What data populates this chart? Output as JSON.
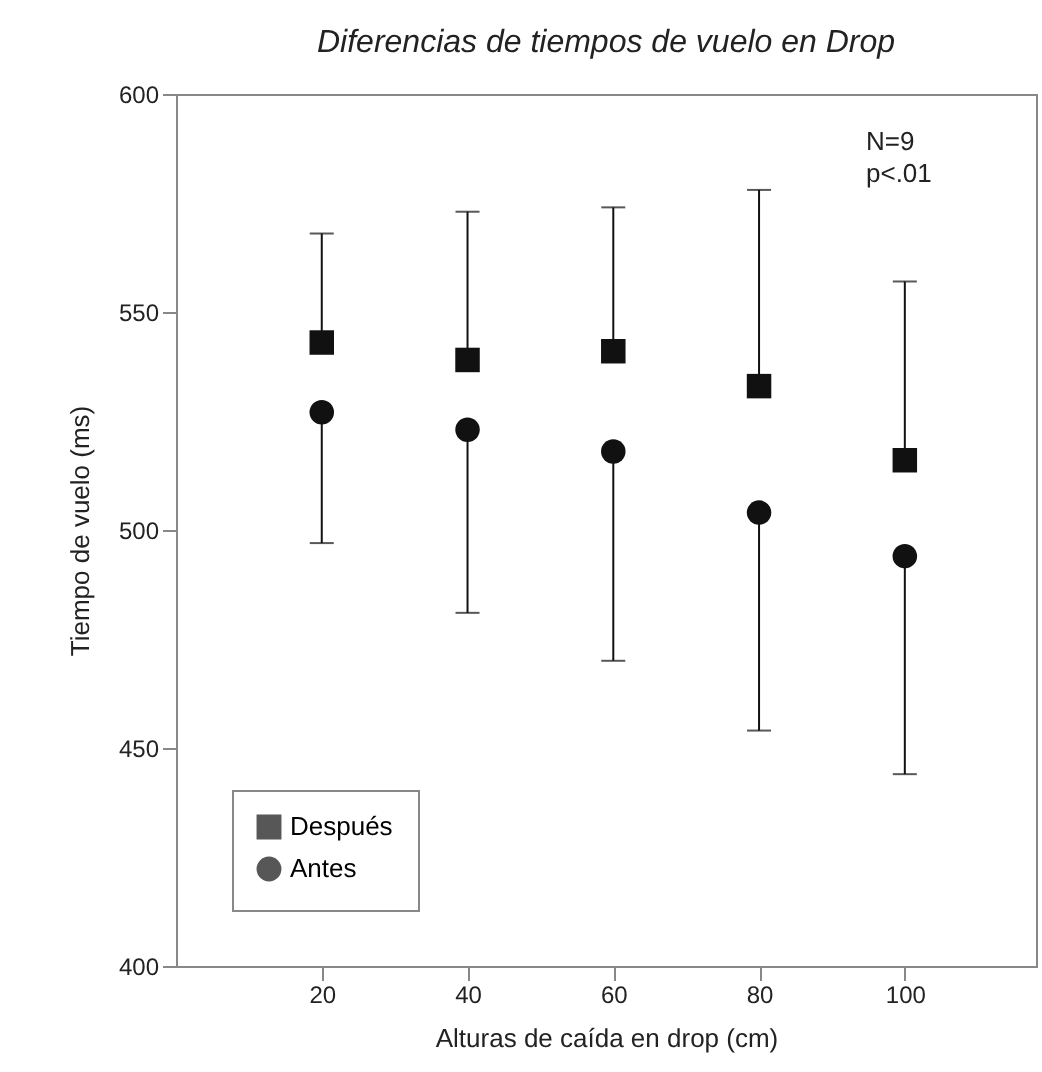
{
  "chart_data": {
    "type": "scatter",
    "title": "Diferencias de tiempos de vuelo en Drop",
    "xlabel": "Alturas de caída en drop (cm)",
    "ylabel": "Tiempo de vuelo (ms)",
    "x": [
      20,
      40,
      60,
      80,
      100
    ],
    "series": [
      {
        "name": "Después",
        "color": "#111111",
        "marker": "square",
        "values": [
          543,
          539,
          541,
          533,
          516
        ],
        "errors": [
          [
            543,
            568
          ],
          [
            539,
            573
          ],
          [
            541,
            574
          ],
          [
            533,
            578
          ],
          [
            516,
            557
          ]
        ]
      },
      {
        "name": "Antes",
        "color": "#111111",
        "marker": "circle",
        "values": [
          527,
          523,
          518,
          504,
          494
        ],
        "errors": [
          [
            497,
            527
          ],
          [
            481,
            523
          ],
          [
            470,
            518
          ],
          [
            454,
            504
          ],
          [
            444,
            494
          ]
        ]
      }
    ],
    "xlim": [
      0,
      118
    ],
    "xticks": [
      20,
      40,
      60,
      80,
      100
    ],
    "ylim": [
      400,
      600
    ],
    "yticks": [
      400,
      450,
      500,
      550,
      600
    ],
    "grid": false,
    "legend": "bottom left",
    "annotations": [
      "N=9",
      "p<.01"
    ]
  }
}
